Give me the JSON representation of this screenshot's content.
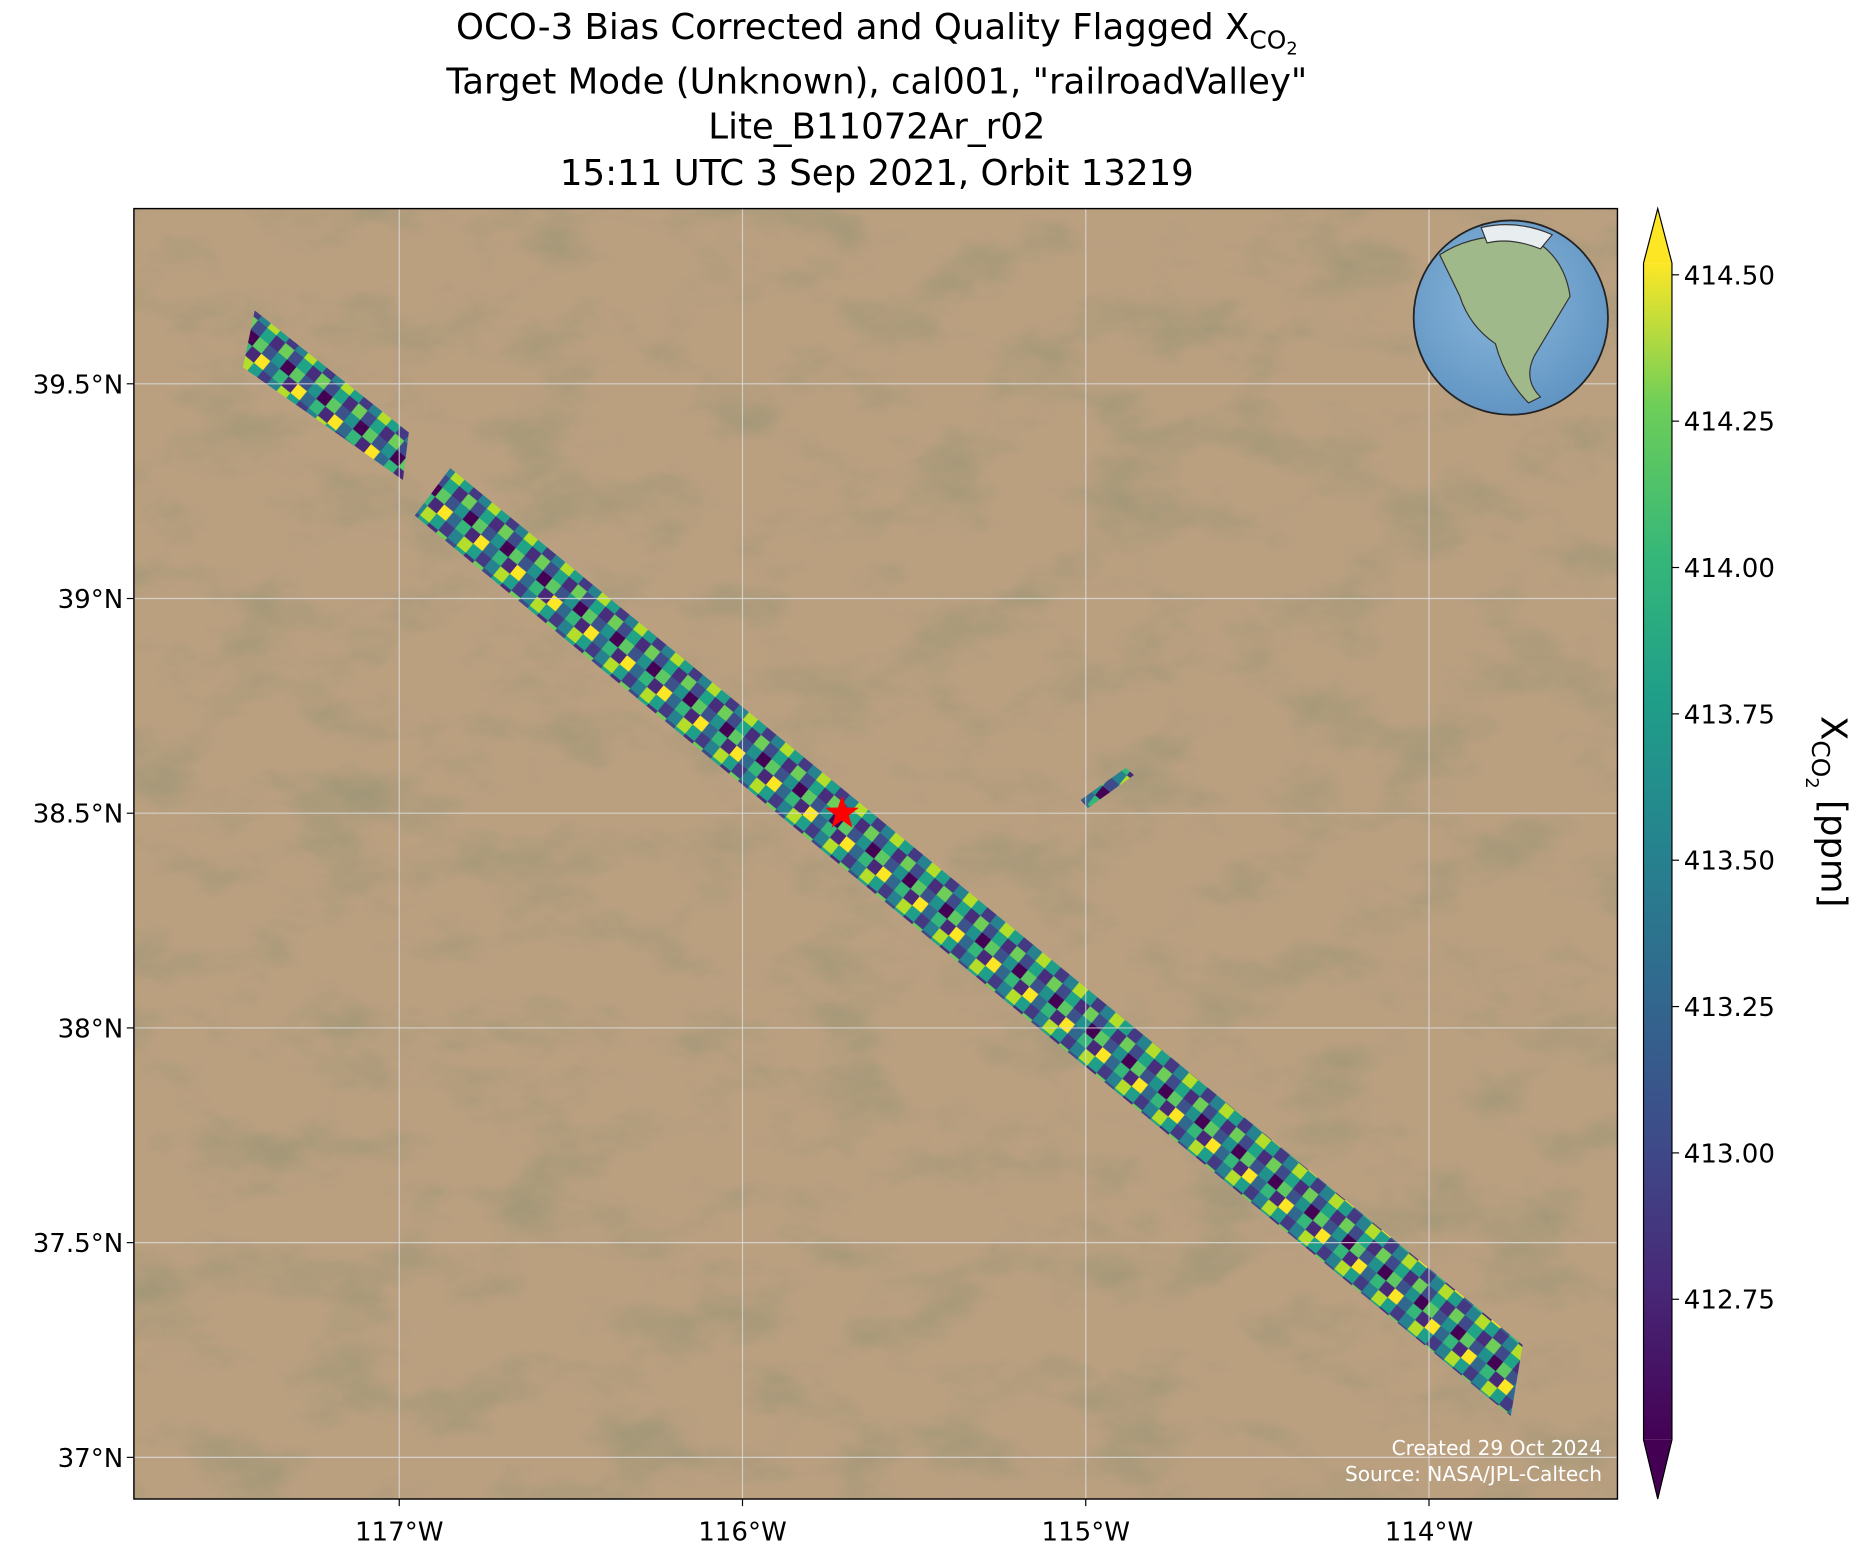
{
  "chart_data": {
    "type": "map",
    "title": {
      "main": "OCO-3 Bias Corrected and Quality Flagged X",
      "sub": "CO",
      "subsub": "2"
    },
    "subtitle": [
      "Target Mode (Unknown), cal001, \"railroadValley\"",
      "Lite_B11072Ar_r02",
      "15:11 UTC 3 Sep 2021, Orbit 13219"
    ],
    "xlim": [
      -117.773,
      -113.451
    ],
    "ylim": [
      36.903,
      39.908
    ],
    "xticks": [
      {
        "value": -117,
        "label": "117°W"
      },
      {
        "value": -116,
        "label": "116°W"
      },
      {
        "value": -115,
        "label": "115°W"
      },
      {
        "value": -114,
        "label": "114°W"
      }
    ],
    "yticks": [
      {
        "value": 37,
        "label": "37°N"
      },
      {
        "value": 37.5,
        "label": "37.5°N"
      },
      {
        "value": 38,
        "label": "38°N"
      },
      {
        "value": 38.5,
        "label": "38.5°N"
      },
      {
        "value": 39,
        "label": "39°N"
      },
      {
        "value": 39.5,
        "label": "39.5°N"
      }
    ],
    "grid": true,
    "target": {
      "lon": -115.71,
      "lat": 38.5,
      "color": "red"
    },
    "colorbar": {
      "colormap": "viridis",
      "extend": "both",
      "lim": [
        412.51,
        414.52
      ],
      "ticks": [
        412.75,
        {
          "value": 413,
          "label": "413.00"
        },
        413.25,
        {
          "value": 413.5,
          "label": "413.50"
        },
        413.75,
        {
          "value": 414,
          "label": "414.00"
        },
        414.25,
        {
          "value": 414.5,
          "label": "414.50"
        }
      ],
      "label": {
        "main": "X",
        "sub": "CO",
        "subsub": "2",
        "rest": " [ppm]"
      }
    },
    "credits": [
      "Created 29 Oct 2024",
      "Source: NASA/JPL-Caltech"
    ]
  }
}
